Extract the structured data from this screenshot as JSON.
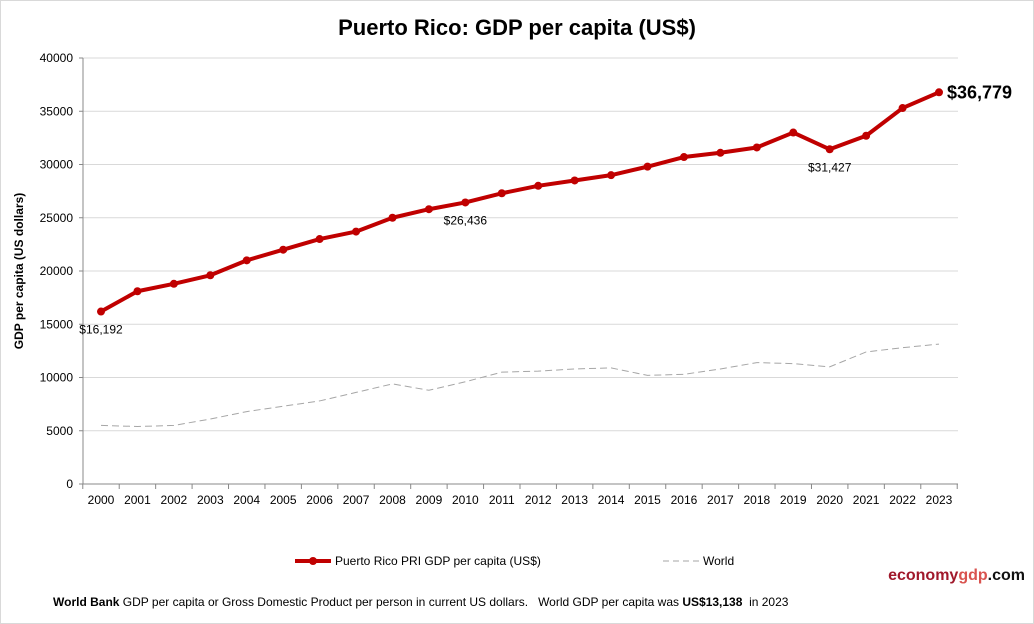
{
  "chart_data": {
    "type": "line",
    "title": "Puerto Rico: GDP per capita (US$)",
    "ylabel": "GDP per capita (US dollars)",
    "xlabel": "",
    "ylim": [
      0,
      40000
    ],
    "yticks": [
      0,
      5000,
      10000,
      15000,
      20000,
      25000,
      30000,
      35000,
      40000
    ],
    "grid": true,
    "legend_position": "bottom",
    "x": [
      "2000",
      "2001",
      "2002",
      "2003",
      "2004",
      "2005",
      "2006",
      "2007",
      "2008",
      "2009",
      "2010",
      "2011",
      "2012",
      "2013",
      "2014",
      "2015",
      "2016",
      "2017",
      "2018",
      "2019",
      "2020",
      "2021",
      "2022",
      "2023"
    ],
    "series": [
      {
        "name": "Puerto Rico PRI GDP per capita (US$)",
        "color": "#c00000",
        "style": "solid-markers",
        "values": [
          16192,
          18100,
          18800,
          19600,
          21000,
          22000,
          23000,
          23700,
          25000,
          25800,
          26436,
          27300,
          28000,
          28500,
          29000,
          29800,
          30700,
          31100,
          31600,
          33000,
          31427,
          32700,
          35300,
          36779
        ]
      },
      {
        "name": "World",
        "color": "#a6a6a6",
        "style": "dashed",
        "values": [
          5500,
          5400,
          5500,
          6100,
          6800,
          7300,
          7800,
          8600,
          9400,
          8800,
          9600,
          10500,
          10600,
          10800,
          10900,
          10200,
          10300,
          10800,
          11400,
          11300,
          11000,
          12400,
          12800,
          13138
        ]
      }
    ],
    "annotations": [
      {
        "x": "2000",
        "text": "$16,192"
      },
      {
        "x": "2010",
        "text": "$26,436"
      },
      {
        "x": "2020",
        "text": "$31,427"
      },
      {
        "x": "2023",
        "text": "$36,779"
      }
    ]
  },
  "logo": {
    "part1": "economy",
    "part2": "gdp",
    "part3": ".com"
  },
  "footer": {
    "bold1": "World Bank",
    "text1": " GDP per capita or Gross Domestic Product per person in current US dollars.   World GDP per capita was ",
    "bold2": "US$13,138",
    "text2": "  in 2023"
  }
}
